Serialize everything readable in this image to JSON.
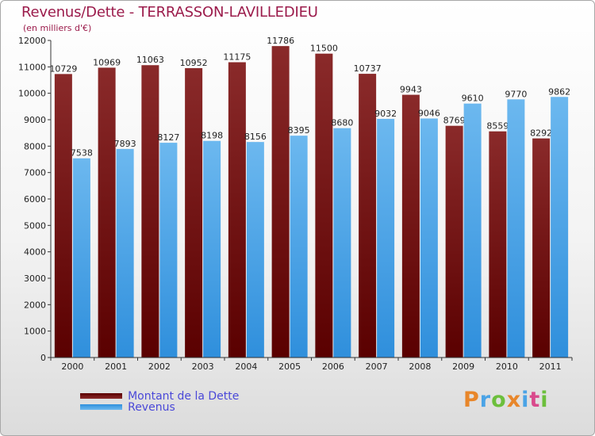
{
  "chart_data": {
    "type": "bar",
    "title": "Revenus/Dette - TERRASSON-LAVILLEDIEU",
    "subtitle": "(en milliers d'€)",
    "categories": [
      "2000",
      "2001",
      "2002",
      "2003",
      "2004",
      "2005",
      "2006",
      "2007",
      "2008",
      "2009",
      "2010",
      "2011"
    ],
    "series": [
      {
        "name": "Montant de la Dette",
        "color": "#7a1a1a",
        "values": [
          10729,
          10969,
          11063,
          10952,
          11175,
          11786,
          11500,
          10737,
          9943,
          8769,
          8559,
          8292
        ]
      },
      {
        "name": "Revenus",
        "color": "#4aa3e6",
        "values": [
          7538,
          7893,
          8127,
          8198,
          8156,
          8395,
          8680,
          9032,
          9046,
          9610,
          9770,
          9862
        ]
      }
    ],
    "y_ticks": [
      "0",
      "1000",
      "2000",
      "3000",
      "4000",
      "5000",
      "6000",
      "7000",
      "8000",
      "9000",
      "10000",
      "11000",
      "12000"
    ],
    "ylim": [
      0,
      12000
    ],
    "xlabel": "",
    "ylabel": "",
    "grid": false,
    "legend_position": "bottom-left"
  },
  "logo": {
    "letters": [
      "P",
      "r",
      "o",
      "x",
      "i",
      "t",
      "i"
    ],
    "colors": [
      "#e8862a",
      "#4aa3e6",
      "#6cbf3c",
      "#e8862a",
      "#4aa3e6",
      "#d94a8c",
      "#6cbf3c"
    ]
  }
}
